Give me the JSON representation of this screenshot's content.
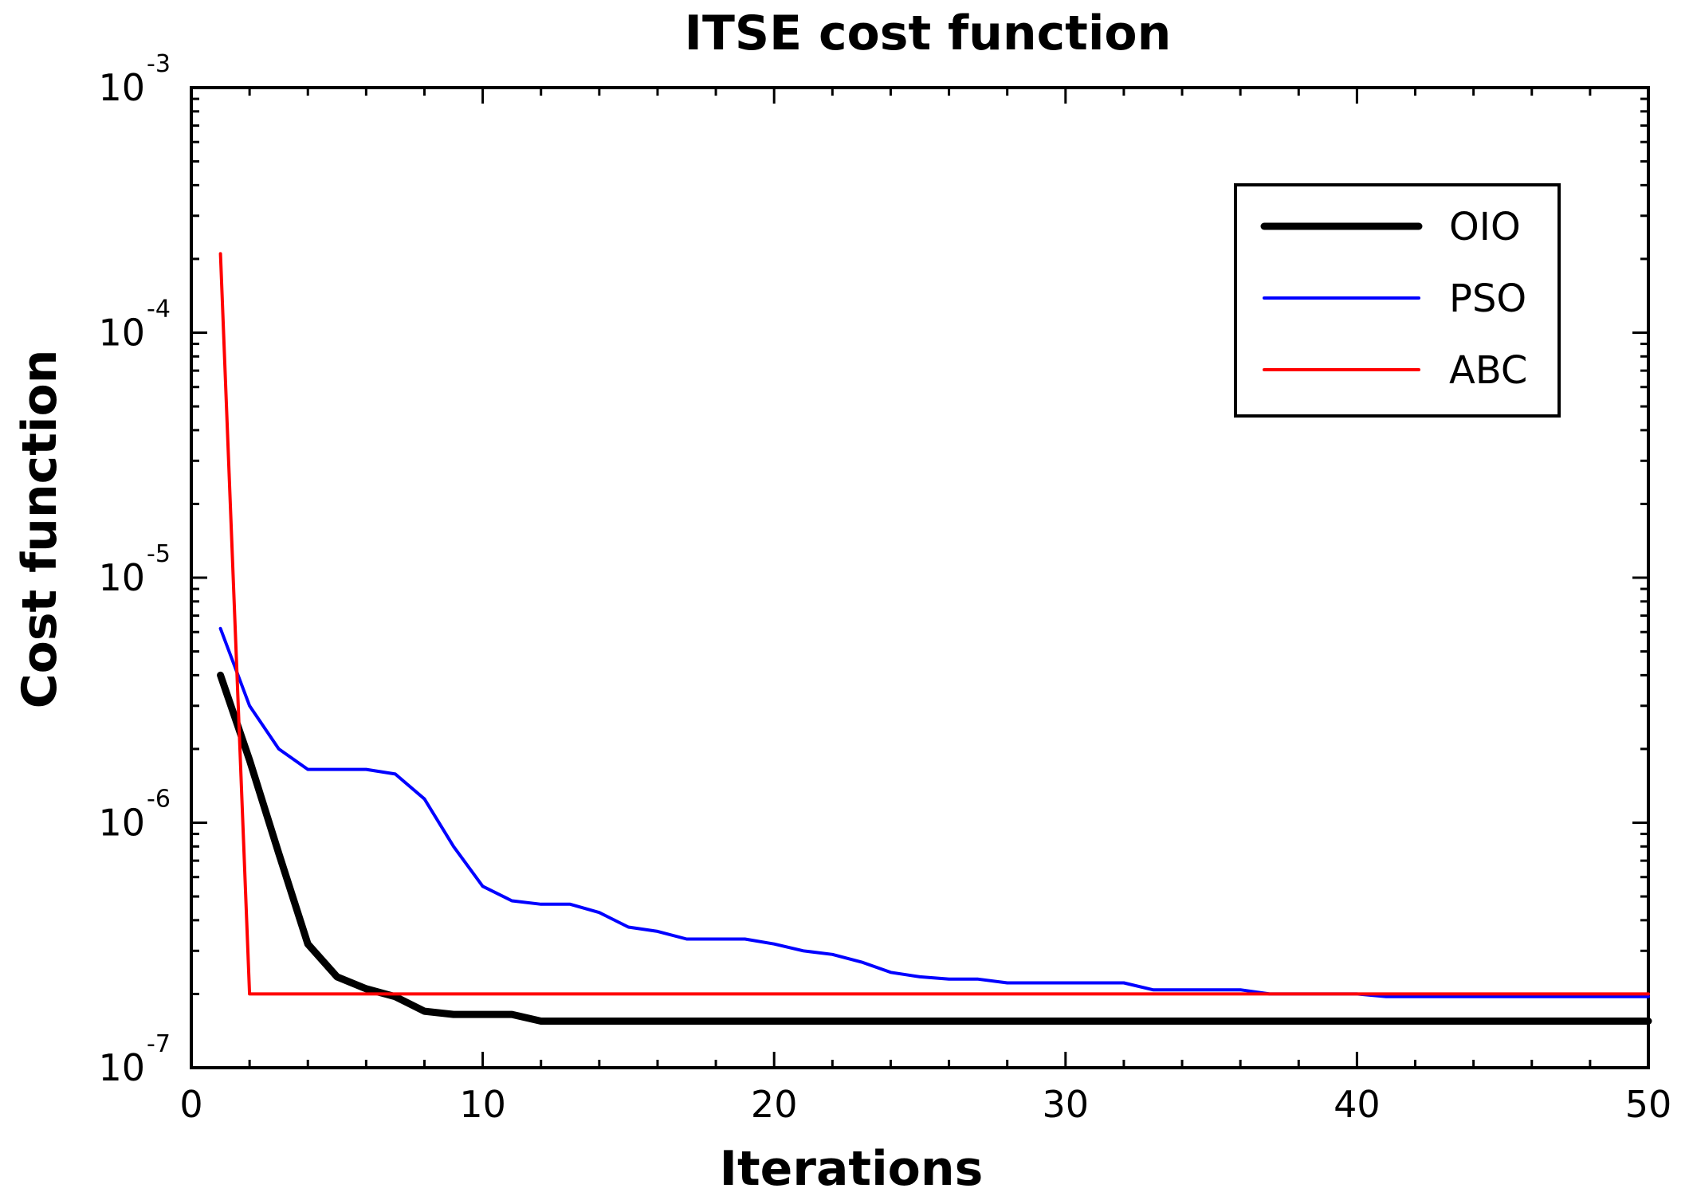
{
  "chart_data": {
    "type": "line",
    "title": "ITSE cost function",
    "xlabel": "Iterations",
    "ylabel": "Cost function",
    "xlim": [
      0,
      50
    ],
    "ylim": [
      1e-07,
      0.001
    ],
    "yscale": "log",
    "x_ticks": [
      0,
      10,
      20,
      30,
      40,
      50
    ],
    "x_tick_labels": [
      "0",
      "10",
      "20",
      "30",
      "40",
      "50"
    ],
    "y_ticks": [
      {
        "value": 0.001,
        "base": "10",
        "exp": "-3"
      },
      {
        "value": 0.0001,
        "base": "10",
        "exp": "-4"
      },
      {
        "value": 1e-05,
        "base": "10",
        "exp": "-5"
      },
      {
        "value": 1e-06,
        "base": "10",
        "exp": "-6"
      },
      {
        "value": 1e-07,
        "base": "10",
        "exp": "-7"
      }
    ],
    "legend_position": "top-right",
    "series": [
      {
        "name": "OIO",
        "color": "#000000",
        "style": "thick",
        "x": [
          1,
          2,
          3,
          4,
          5,
          6,
          7,
          8,
          9,
          10,
          11,
          12,
          13,
          14,
          15,
          16,
          17,
          18,
          19,
          20,
          21,
          22,
          23,
          24,
          25,
          26,
          27,
          28,
          29,
          30,
          31,
          32,
          33,
          34,
          35,
          36,
          37,
          38,
          39,
          40,
          41,
          42,
          43,
          44,
          45,
          46,
          47,
          48,
          49,
          50
        ],
        "values": [
          4e-06,
          1.8e-06,
          7.5e-07,
          3.2e-07,
          2.35e-07,
          2.1e-07,
          1.95e-07,
          1.7e-07,
          1.65e-07,
          1.65e-07,
          1.65e-07,
          1.55e-07,
          1.55e-07,
          1.55e-07,
          1.55e-07,
          1.55e-07,
          1.55e-07,
          1.55e-07,
          1.55e-07,
          1.55e-07,
          1.55e-07,
          1.55e-07,
          1.55e-07,
          1.55e-07,
          1.55e-07,
          1.55e-07,
          1.55e-07,
          1.55e-07,
          1.55e-07,
          1.55e-07,
          1.55e-07,
          1.55e-07,
          1.55e-07,
          1.55e-07,
          1.55e-07,
          1.55e-07,
          1.55e-07,
          1.55e-07,
          1.55e-07,
          1.55e-07,
          1.55e-07,
          1.55e-07,
          1.55e-07,
          1.55e-07,
          1.55e-07,
          1.55e-07,
          1.55e-07,
          1.55e-07,
          1.55e-07,
          1.55e-07
        ]
      },
      {
        "name": "PSO",
        "color": "#0000ff",
        "style": "thin",
        "x": [
          1,
          2,
          3,
          4,
          5,
          6,
          7,
          8,
          9,
          10,
          11,
          12,
          13,
          14,
          15,
          16,
          17,
          18,
          19,
          20,
          21,
          22,
          23,
          24,
          25,
          26,
          27,
          28,
          29,
          30,
          31,
          32,
          33,
          34,
          35,
          36,
          37,
          38,
          39,
          40,
          41,
          42,
          43,
          44,
          45,
          46,
          47,
          48,
          49,
          50
        ],
        "values": [
          6.2e-06,
          3e-06,
          2e-06,
          1.65e-06,
          1.65e-06,
          1.65e-06,
          1.58e-06,
          1.25e-06,
          8e-07,
          5.5e-07,
          4.8e-07,
          4.65e-07,
          4.65e-07,
          4.3e-07,
          3.75e-07,
          3.6e-07,
          3.35e-07,
          3.35e-07,
          3.35e-07,
          3.2e-07,
          3e-07,
          2.9e-07,
          2.7e-07,
          2.45e-07,
          2.35e-07,
          2.3e-07,
          2.3e-07,
          2.22e-07,
          2.22e-07,
          2.22e-07,
          2.22e-07,
          2.22e-07,
          2.08e-07,
          2.08e-07,
          2.08e-07,
          2.08e-07,
          2e-07,
          2e-07,
          2e-07,
          2e-07,
          1.95e-07,
          1.95e-07,
          1.95e-07,
          1.95e-07,
          1.95e-07,
          1.95e-07,
          1.95e-07,
          1.95e-07,
          1.95e-07,
          1.95e-07
        ]
      },
      {
        "name": "ABC",
        "color": "#ff0000",
        "style": "thin",
        "x": [
          1,
          2,
          3,
          4,
          5,
          6,
          7,
          8,
          9,
          10,
          11,
          12,
          13,
          14,
          15,
          16,
          17,
          18,
          19,
          20,
          21,
          22,
          23,
          24,
          25,
          26,
          27,
          28,
          29,
          30,
          31,
          32,
          33,
          34,
          35,
          36,
          37,
          38,
          39,
          40,
          41,
          42,
          43,
          44,
          45,
          46,
          47,
          48,
          49,
          50
        ],
        "values": [
          0.00021,
          2e-07,
          2e-07,
          2e-07,
          2e-07,
          2e-07,
          2e-07,
          2e-07,
          2e-07,
          2e-07,
          2e-07,
          2e-07,
          2e-07,
          2e-07,
          2e-07,
          2e-07,
          2e-07,
          2e-07,
          2e-07,
          2e-07,
          2e-07,
          2e-07,
          2e-07,
          2e-07,
          2e-07,
          2e-07,
          2e-07,
          2e-07,
          2e-07,
          2e-07,
          2e-07,
          2e-07,
          2e-07,
          2e-07,
          2e-07,
          2e-07,
          2e-07,
          2e-07,
          2e-07,
          2e-07,
          2e-07,
          2e-07,
          2e-07,
          2e-07,
          2e-07,
          2e-07,
          2e-07,
          2e-07,
          2e-07,
          2e-07
        ]
      }
    ]
  }
}
